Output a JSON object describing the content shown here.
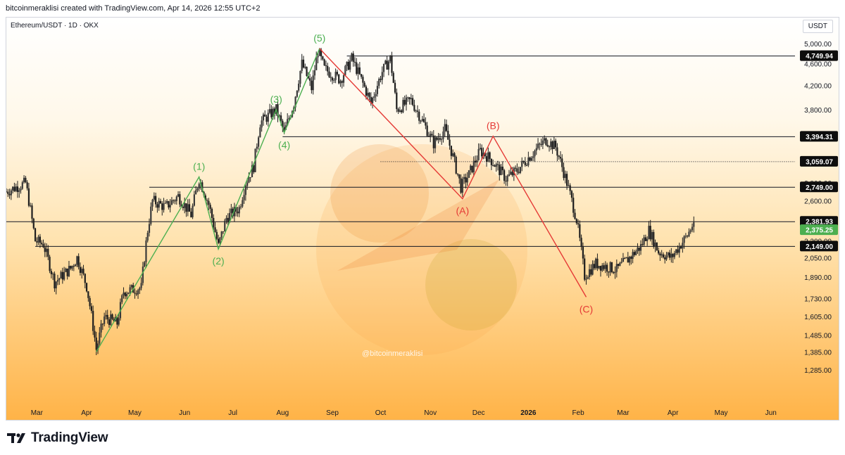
{
  "header": {
    "caption": "bitcoinmeraklisi created with TradingView.com, Apr 14, 2026 12:55 UTC+2"
  },
  "chart": {
    "symbol": "Ethereum/USDT · 1D · OKX",
    "currency": "USDT",
    "watermark": "@bitcoinmeraklisi"
  },
  "footer": {
    "logo_text": "TradingView",
    "logo_icon": "tradingview-logo-icon"
  },
  "colors": {
    "bull_wave": "#4caf50",
    "bear_wave": "#e53935",
    "candle": "#1e1e1e",
    "last_price": "#4caf50",
    "level_tag": "#0d0d0d"
  },
  "chart_data": {
    "type": "candlestick",
    "title": "Ethereum/USDT · 1D · OKX",
    "ylabel": "USDT",
    "yscale": "log",
    "ylim": [
      1180,
      5350
    ],
    "grid": false,
    "x_ticks": [
      "Mar",
      "Apr",
      "May",
      "Jun",
      "Jul",
      "Aug",
      "Sep",
      "Oct",
      "Nov",
      "Dec",
      "2026",
      "Feb",
      "Mar",
      "Apr",
      "May",
      "Jun"
    ],
    "x_tick_dates": [
      "2025-03-01",
      "2025-04-01",
      "2025-05-01",
      "2025-06-01",
      "2025-07-01",
      "2025-08-01",
      "2025-09-01",
      "2025-10-01",
      "2025-11-01",
      "2025-12-01",
      "2026-01-01",
      "2026-02-01",
      "2026-03-01",
      "2026-04-01",
      "2026-05-01",
      "2026-06-01"
    ],
    "x_range": [
      "2025-02-10",
      "2026-06-16"
    ],
    "y_ticks": [
      "5,000.00",
      "4,600.00",
      "4,200.00",
      "3,800.00",
      "3,400.00",
      "2,800.00",
      "2,600.00",
      "2,200.00",
      "2,050.00",
      "1,890.00",
      "1,730.00",
      "1,605.00",
      "1,485.00",
      "1,385.00",
      "1,285.00"
    ],
    "y_tick_values": [
      5000,
      4600,
      4200,
      3800,
      3400,
      2800,
      2600,
      2200,
      2050,
      1890,
      1730,
      1605,
      1485,
      1385,
      1285
    ],
    "price_path": [
      [
        "2025-02-10",
        2700
      ],
      [
        "2025-02-22",
        2800
      ],
      [
        "2025-02-28",
        2200
      ],
      [
        "2025-03-05",
        2170
      ],
      [
        "2025-03-12",
        1850
      ],
      [
        "2025-03-22",
        1960
      ],
      [
        "2025-03-26",
        2050
      ],
      [
        "2025-04-01",
        1820
      ],
      [
        "2025-04-07",
        1400
      ],
      [
        "2025-04-12",
        1600
      ],
      [
        "2025-04-20",
        1560
      ],
      [
        "2025-04-24",
        1780
      ],
      [
        "2025-05-05",
        1810
      ],
      [
        "2025-05-09",
        2300
      ],
      [
        "2025-05-12",
        2600
      ],
      [
        "2025-05-20",
        2530
      ],
      [
        "2025-05-28",
        2650
      ],
      [
        "2025-06-05",
        2450
      ],
      [
        "2025-06-10",
        2850
      ],
      [
        "2025-06-16",
        2560
      ],
      [
        "2025-06-22",
        2150
      ],
      [
        "2025-06-27",
        2420
      ],
      [
        "2025-07-05",
        2520
      ],
      [
        "2025-07-09",
        2800
      ],
      [
        "2025-07-14",
        3000
      ],
      [
        "2025-07-18",
        3600
      ],
      [
        "2025-07-28",
        3800
      ],
      [
        "2025-08-02",
        3450
      ],
      [
        "2025-08-08",
        3900
      ],
      [
        "2025-08-13",
        4600
      ],
      [
        "2025-08-19",
        4150
      ],
      [
        "2025-08-23",
        4850
      ],
      [
        "2025-08-27",
        4500
      ],
      [
        "2025-09-06",
        4300
      ],
      [
        "2025-09-13",
        4700
      ],
      [
        "2025-09-25",
        3900
      ],
      [
        "2025-10-02",
        4450
      ],
      [
        "2025-10-07",
        4700
      ],
      [
        "2025-10-11",
        3800
      ],
      [
        "2025-10-20",
        3950
      ],
      [
        "2025-11-03",
        3300
      ],
      [
        "2025-11-10",
        3500
      ],
      [
        "2025-11-20",
        2750
      ],
      [
        "2025-11-25",
        2900
      ],
      [
        "2025-12-02",
        3200
      ],
      [
        "2025-12-08",
        3100
      ],
      [
        "2025-12-18",
        2850
      ],
      [
        "2025-12-25",
        2950
      ],
      [
        "2026-01-05",
        3200
      ],
      [
        "2026-01-12",
        3350
      ],
      [
        "2026-01-18",
        3250
      ],
      [
        "2026-01-25",
        2800
      ],
      [
        "2026-01-31",
        2400
      ],
      [
        "2026-02-05",
        1900
      ],
      [
        "2026-02-12",
        2000
      ],
      [
        "2026-02-25",
        1950
      ],
      [
        "2026-03-05",
        2050
      ],
      [
        "2026-03-12",
        2150
      ],
      [
        "2026-03-17",
        2300
      ],
      [
        "2026-03-23",
        2100
      ],
      [
        "2026-03-31",
        2050
      ],
      [
        "2026-04-05",
        2150
      ],
      [
        "2026-04-10",
        2250
      ],
      [
        "2026-04-14",
        2375.25
      ]
    ],
    "horizontal_levels": [
      {
        "price": 4749.94,
        "label": "4,749.94",
        "start": "2025-09-10",
        "style": "solid"
      },
      {
        "price": 3394.31,
        "label": "3,394.31",
        "start": "2025-08-01",
        "style": "solid"
      },
      {
        "price": 3059.07,
        "label": "3,059.07",
        "start": "2025-10-01",
        "style": "dotted"
      },
      {
        "price": 2749.0,
        "label": "2,749.00",
        "start": "2025-05-10",
        "style": "solid"
      },
      {
        "price": 2381.93,
        "label": "2,381.93",
        "start": "2025-02-10",
        "style": "solid"
      },
      {
        "price": 2149.0,
        "label": "2,149.00",
        "start": "2025-02-28",
        "style": "solid"
      }
    ],
    "last_price": {
      "price": 2375.25,
      "label": "2,375.25"
    },
    "elliott_impulse": {
      "name": "",
      "points": [
        [
          "2025-04-07",
          1385,
          ""
        ],
        [
          "2025-06-10",
          2870,
          "(1)"
        ],
        [
          "2025-06-22",
          2125,
          "(2)"
        ],
        [
          "2025-07-28",
          3800,
          "(3)"
        ],
        [
          "2025-08-02",
          3450,
          "(4)"
        ],
        [
          "2025-08-24",
          4900,
          "(5)"
        ]
      ]
    },
    "elliott_correction": {
      "name": "",
      "points": [
        [
          "2025-08-24",
          4900,
          ""
        ],
        [
          "2025-11-21",
          2620,
          "(A)"
        ],
        [
          "2025-12-10",
          3400,
          "(B)"
        ],
        [
          "2026-02-06",
          1740,
          "(C)"
        ]
      ]
    }
  }
}
